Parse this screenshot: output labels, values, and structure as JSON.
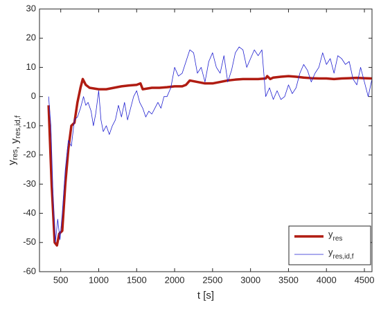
{
  "chart_data": {
    "type": "line",
    "xlabel": "t [s]",
    "ylabel": [
      {
        "text": "y",
        "sub": "res"
      },
      {
        "text": ", y",
        "sub": "res,id,f"
      }
    ],
    "xlim": [
      220,
      4600
    ],
    "xticks": [
      500,
      1000,
      1500,
      2000,
      2500,
      3000,
      3500,
      4000,
      4500
    ],
    "ylim": [
      -60,
      30
    ],
    "yticks": [
      -60,
      -50,
      -40,
      -30,
      -20,
      -10,
      0,
      10,
      20,
      30
    ],
    "legend": "lower right",
    "series": [
      {
        "name": "y",
        "subscript": "res",
        "color": "#b01c12",
        "width": 3.5,
        "x": [
          340,
          380,
          420,
          450,
          480,
          520,
          560,
          600,
          640,
          680,
          720,
          760,
          790,
          830,
          880,
          1000,
          1100,
          1200,
          1300,
          1400,
          1500,
          1550,
          1580,
          1700,
          1800,
          1900,
          2000,
          2100,
          2150,
          2200,
          2300,
          2400,
          2500,
          2600,
          2700,
          2800,
          2900,
          3000,
          3100,
          3200,
          3220,
          3260,
          3300,
          3400,
          3500,
          3600,
          3700,
          3800,
          3900,
          4000,
          4100,
          4200,
          4300,
          4400,
          4500,
          4600
        ],
        "values": [
          -3,
          -30,
          -50,
          -51,
          -47,
          -46,
          -30,
          -18,
          -10,
          -9,
          -2,
          3,
          6,
          4,
          3,
          2.5,
          2.5,
          3,
          3.5,
          3.8,
          4,
          4.5,
          2.5,
          3,
          3,
          3.2,
          3.5,
          3.5,
          4,
          5.5,
          5,
          4.5,
          4.5,
          5,
          5.5,
          5.8,
          6,
          6,
          6,
          6.2,
          7,
          6,
          6.5,
          6.8,
          7,
          6.8,
          6.5,
          6.3,
          6.2,
          6.2,
          6,
          6.2,
          6.3,
          6.4,
          6.3,
          6.2
        ]
      },
      {
        "name": "y",
        "subscript": "res,id,f",
        "color": "#1f1fd0",
        "width": 0.8,
        "x": [
          340,
          370,
          400,
          430,
          460,
          490,
          520,
          560,
          600,
          640,
          680,
          720,
          760,
          800,
          830,
          860,
          900,
          930,
          960,
          1000,
          1030,
          1060,
          1100,
          1140,
          1180,
          1220,
          1260,
          1300,
          1340,
          1380,
          1420,
          1460,
          1500,
          1540,
          1580,
          1620,
          1660,
          1700,
          1740,
          1780,
          1820,
          1860,
          1900,
          1950,
          2000,
          2050,
          2100,
          2150,
          2200,
          2250,
          2300,
          2350,
          2400,
          2450,
          2500,
          2550,
          2600,
          2650,
          2700,
          2750,
          2800,
          2850,
          2900,
          2950,
          3000,
          3050,
          3100,
          3150,
          3200,
          3250,
          3300,
          3350,
          3400,
          3450,
          3500,
          3550,
          3600,
          3650,
          3700,
          3750,
          3800,
          3850,
          3900,
          3950,
          4000,
          4050,
          4100,
          4150,
          4200,
          4250,
          4300,
          4350,
          4400,
          4450,
          4500,
          4550,
          4600
        ],
        "values": [
          0,
          -10,
          -35,
          -50,
          -42,
          -49,
          -40,
          -25,
          -15,
          -17,
          -8,
          -7,
          -4,
          0,
          -3,
          -2,
          -5,
          -10,
          -6,
          2,
          -8,
          -12,
          -10,
          -13,
          -10,
          -8,
          -3,
          -7,
          -2,
          -8,
          -4,
          0,
          2,
          -2,
          -4,
          -7,
          -5,
          -6,
          -4,
          -2,
          -4,
          0,
          0,
          3,
          10,
          7,
          8,
          12,
          16,
          15,
          8,
          10,
          5,
          12,
          15,
          10,
          8,
          14,
          5,
          9,
          15,
          17,
          16,
          10,
          13,
          16,
          14,
          16,
          0,
          3,
          -1,
          2,
          -1,
          0,
          4,
          1,
          3,
          8,
          11,
          9,
          5,
          8,
          10,
          15,
          11,
          13,
          8,
          14,
          13,
          11,
          12,
          6,
          4,
          10,
          5,
          0,
          6
        ]
      }
    ]
  }
}
